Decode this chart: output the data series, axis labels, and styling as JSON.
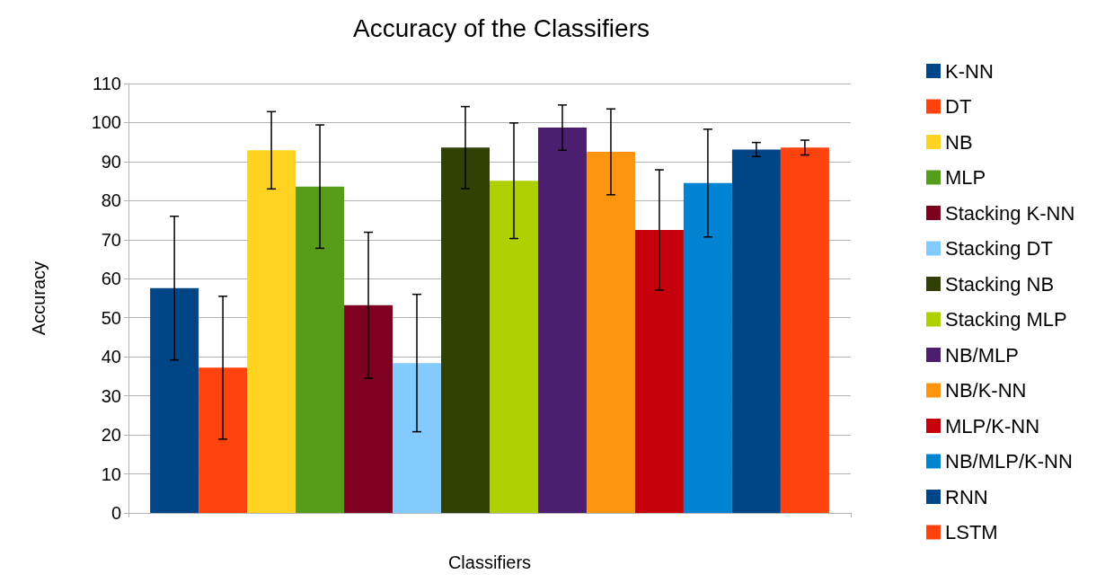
{
  "chart_data": {
    "type": "bar",
    "title": "Accuracy of the Classifiers",
    "xlabel": "Classifiers",
    "ylabel": "Accuracy",
    "categories": [
      null
    ],
    "series": [
      {
        "name": "K-NN",
        "color": "#004586",
        "values": [
          57.6
        ],
        "errors": [
          18.4
        ]
      },
      {
        "name": "DT",
        "color": "#ff420e",
        "values": [
          37.2
        ],
        "errors": [
          18.3
        ]
      },
      {
        "name": "NB",
        "color": "#ffd320",
        "values": [
          92.9
        ],
        "errors": [
          9.9
        ]
      },
      {
        "name": "MLP",
        "color": "#579d1c",
        "values": [
          83.6
        ],
        "errors": [
          15.8
        ]
      },
      {
        "name": "Stacking K-NN",
        "color": "#7e0021",
        "values": [
          53.2
        ],
        "errors": [
          18.7
        ]
      },
      {
        "name": "Stacking DT",
        "color": "#83caff",
        "values": [
          38.4
        ],
        "errors": [
          17.6
        ]
      },
      {
        "name": "Stacking NB",
        "color": "#314004",
        "values": [
          93.6
        ],
        "errors": [
          10.5
        ]
      },
      {
        "name": "Stacking MLP",
        "color": "#aecf00",
        "values": [
          85.1
        ],
        "errors": [
          14.8
        ]
      },
      {
        "name": "NB/MLP",
        "color": "#4b1f6f",
        "values": [
          98.7
        ],
        "errors": [
          5.8
        ]
      },
      {
        "name": "NB/K-NN",
        "color": "#ff950e",
        "values": [
          92.5
        ],
        "errors": [
          11.0
        ]
      },
      {
        "name": "MLP/K-NN",
        "color": "#c5000b",
        "values": [
          72.5
        ],
        "errors": [
          15.4
        ]
      },
      {
        "name": "NB/MLP/K-NN",
        "color": "#0084d1",
        "values": [
          84.5
        ],
        "errors": [
          13.8
        ]
      },
      {
        "name": "RNN",
        "color": "#004586",
        "values": [
          93.1
        ],
        "errors": [
          1.8
        ]
      },
      {
        "name": "LSTM",
        "color": "#ff420e",
        "values": [
          93.6
        ],
        "errors": [
          1.9
        ]
      }
    ],
    "ylim": [
      0,
      110
    ],
    "yticks": [
      0,
      10,
      20,
      30,
      40,
      50,
      60,
      70,
      80,
      90,
      100,
      110
    ],
    "grid": "y",
    "legend": "right"
  }
}
